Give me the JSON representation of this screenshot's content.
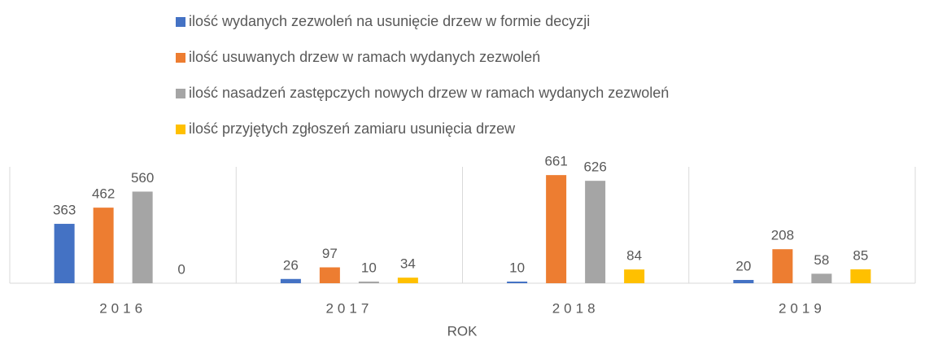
{
  "chart_data": {
    "type": "bar",
    "x_label": "ROK",
    "categories": [
      "2016",
      "2017",
      "2018",
      "2019"
    ],
    "series": [
      {
        "name": "ilość wydanych zezwoleń na usunięcie drzew w formie decyzji",
        "color": "#4472c4",
        "values": [
          363,
          26,
          10,
          20
        ]
      },
      {
        "name": "ilość  usuwanych drzew w ramach wydanych zezwoleń",
        "color": "#ed7d31",
        "values": [
          462,
          97,
          661,
          208
        ]
      },
      {
        "name": "ilość nasadzeń zastępczych nowych drzew w ramach wydanych zezwoleń",
        "color": "#a5a5a5",
        "values": [
          560,
          10,
          626,
          58
        ]
      },
      {
        "name": "ilość przyjętych zgłoszeń zamiaru usunięcia drzew",
        "color": "#ffc000",
        "values": [
          0,
          34,
          84,
          85
        ]
      }
    ],
    "legend": "top"
  }
}
